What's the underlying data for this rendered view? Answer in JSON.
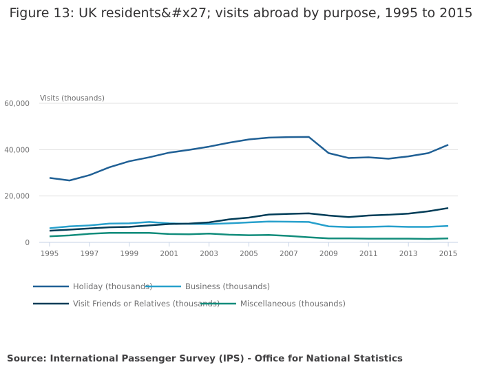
{
  "chart_data": {
    "type": "line",
    "title": "Figure 13: UK residents&#x27; visits abroad by purpose, 1995 to 2015",
    "ylabel": "Visits (thousands)",
    "ylim": [
      0,
      60000
    ],
    "yticks": [
      "0",
      "20,000",
      "40,000",
      "60,000"
    ],
    "ytick_values": [
      0,
      20000,
      40000,
      60000
    ],
    "x": [
      1995,
      1996,
      1997,
      1998,
      1999,
      2000,
      2001,
      2002,
      2003,
      2004,
      2005,
      2006,
      2007,
      2008,
      2009,
      2010,
      2011,
      2012,
      2013,
      2014,
      2015
    ],
    "xticks": [
      "1995",
      "1997",
      "1999",
      "2001",
      "2003",
      "2005",
      "2007",
      "2009",
      "2011",
      "2013",
      "2015"
    ],
    "grid": true,
    "legend_placement": "bottom",
    "series": [
      {
        "name": "Holiday (thousands)",
        "color": "#206095",
        "values": [
          27800,
          26700,
          29000,
          32400,
          35000,
          36700,
          38700,
          39900,
          41300,
          43000,
          44400,
          45200,
          45400,
          45500,
          38500,
          36400,
          36700,
          36100,
          37100,
          38500,
          42100
        ]
      },
      {
        "name": "Business (thousands)",
        "color": "#27a0cc",
        "values": [
          6100,
          6900,
          7300,
          8100,
          8200,
          8800,
          8200,
          8000,
          7900,
          8200,
          8600,
          9000,
          8900,
          8800,
          6900,
          6600,
          6700,
          6900,
          6700,
          6700,
          7100
        ]
      },
      {
        "name": "Visit Friends or Relatives (thousands)",
        "color": "#003c57",
        "values": [
          5000,
          5500,
          6000,
          6500,
          6700,
          7300,
          7900,
          8100,
          8600,
          9900,
          10700,
          12000,
          12300,
          12500,
          11600,
          10900,
          11600,
          11900,
          12400,
          13400,
          14800
        ]
      },
      {
        "name": "Miscellaneous (thousands)",
        "color": "#118c7b",
        "values": [
          2600,
          3000,
          3700,
          4100,
          4100,
          4100,
          3600,
          3500,
          3800,
          3300,
          3100,
          3200,
          2800,
          2200,
          1700,
          1700,
          1600,
          1600,
          1600,
          1500,
          1700
        ]
      }
    ]
  },
  "source": "Source: International Passenger Survey (IPS) - Office for National Statistics"
}
